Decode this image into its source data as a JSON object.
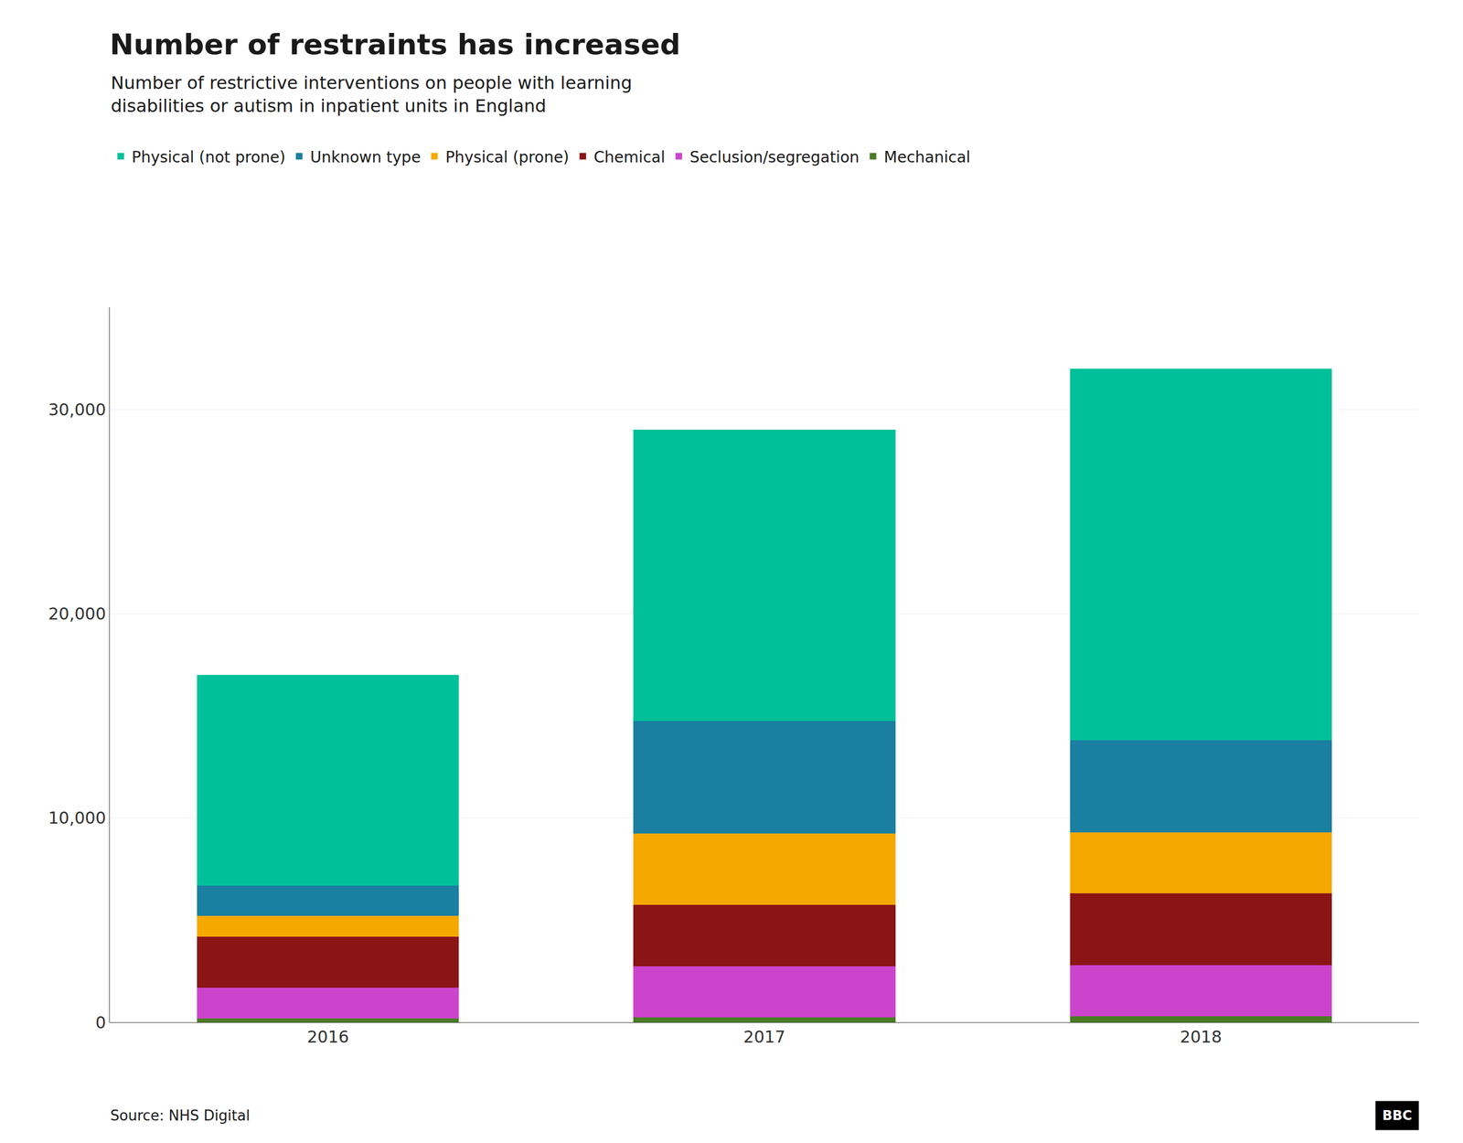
{
  "chart_data": {
    "type": "bar",
    "title": "Number of restraints has increased",
    "subtitle": "Number of restrictive interventions on people with learning\ndisabilities or autism in inpatient units in England",
    "annotations": [
      "Source: NHS Digital",
      "BBC"
    ],
    "categories": [
      "2016",
      "2017",
      "2018"
    ],
    "series": [
      {
        "name": "Mechanical",
        "color": "#4a7c24",
        "values": [
          200,
          250,
          300
        ]
      },
      {
        "name": "Seclusion/segregation",
        "color": "#cc44cc",
        "values": [
          1500,
          2500,
          2500
        ]
      },
      {
        "name": "Chemical",
        "color": "#8b1515",
        "values": [
          2500,
          3000,
          3500
        ]
      },
      {
        "name": "Physical (prone)",
        "color": "#f5a800",
        "values": [
          1000,
          3500,
          3000
        ]
      },
      {
        "name": "Unknown type",
        "color": "#1a7fa0",
        "values": [
          1500,
          5500,
          4500
        ]
      },
      {
        "name": "Physical (not prone)",
        "color": "#00c09a",
        "values": [
          10300,
          14250,
          18200
        ]
      }
    ],
    "stacked": true,
    "ylim": [
      0,
      35000
    ],
    "yticks": [
      0,
      {
        "value": 10000,
        "label": "10,000"
      },
      {
        "value": 20000,
        "label": "20,000"
      },
      {
        "value": 30000,
        "label": "30,000"
      }
    ],
    "grid": true,
    "legend": "top"
  }
}
